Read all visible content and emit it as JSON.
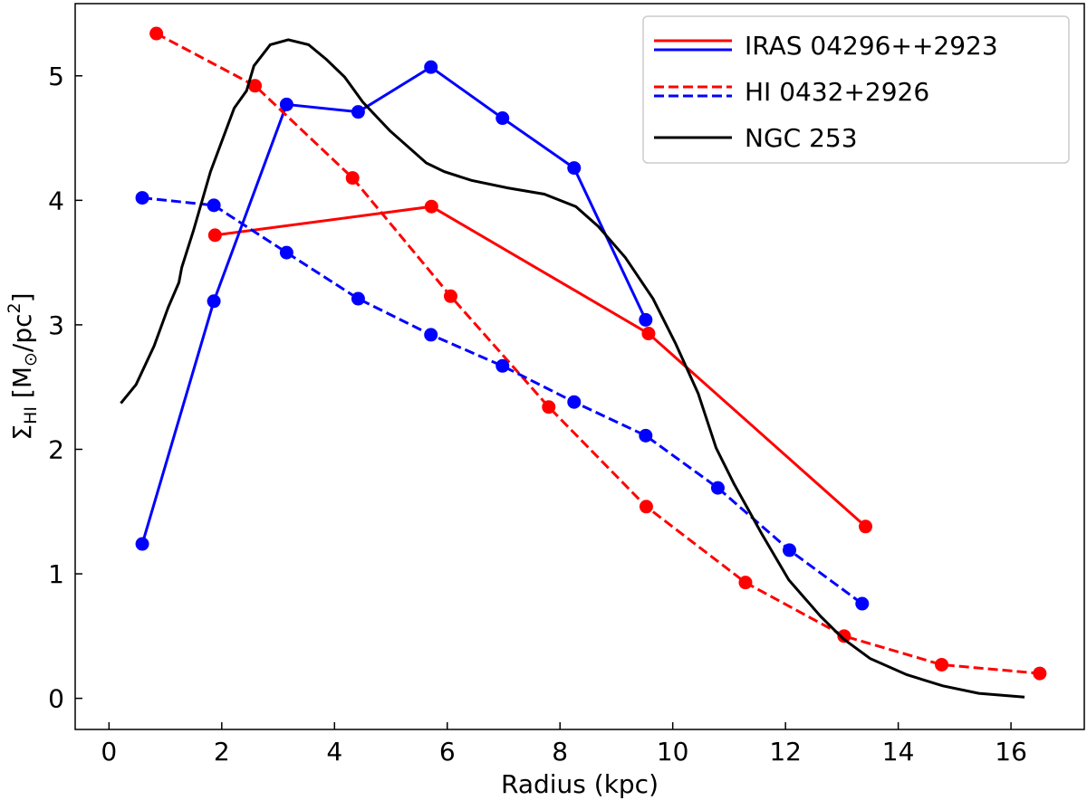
{
  "chart_data": {
    "type": "line",
    "xlabel": "Radius (kpc)",
    "ylabel_parts": [
      {
        "text": "Σ"
      },
      {
        "text": "HI",
        "sub": true
      },
      {
        "text": " [M"
      },
      {
        "text": "⊙",
        "sub": true
      },
      {
        "text": "/pc"
      },
      {
        "text": "2",
        "sup": true
      },
      {
        "text": "]"
      }
    ],
    "xlim": [
      -0.6,
      17.3
    ],
    "ylim": [
      -0.25,
      5.58
    ],
    "xticks": [
      0,
      2,
      4,
      6,
      8,
      10,
      12,
      14,
      16
    ],
    "yticks": [
      0,
      1,
      2,
      3,
      4,
      5
    ],
    "legend": "upper right",
    "series": [
      {
        "name": "IRAS 04296++2923",
        "dashed": false,
        "markers": true,
        "lines": [
          {
            "color": "#ff0000",
            "x": [
              1.88,
              5.72,
              9.57,
              13.42
            ],
            "values": [
              3.72,
              3.95,
              2.93,
              1.38
            ]
          },
          {
            "color": "#0000ff",
            "x": [
              0.59,
              1.86,
              3.15,
              4.42,
              5.71,
              6.98,
              8.25,
              9.52
            ],
            "values": [
              1.24,
              3.19,
              4.77,
              4.71,
              5.07,
              4.66,
              4.26,
              3.04
            ]
          }
        ]
      },
      {
        "name": "HI 0432+2926",
        "dashed": true,
        "markers": true,
        "lines": [
          {
            "color": "#ff0000",
            "x": [
              0.84,
              2.59,
              4.32,
              6.06,
              7.8,
              9.53,
              11.29,
              13.04,
              14.77,
              16.51
            ],
            "values": [
              5.34,
              4.92,
              4.18,
              3.23,
              2.34,
              1.54,
              0.93,
              0.5,
              0.27,
              0.2
            ]
          },
          {
            "color": "#0000ff",
            "x": [
              0.59,
              1.86,
              3.15,
              4.42,
              5.71,
              6.98,
              8.25,
              9.52,
              10.8,
              12.07,
              13.36
            ],
            "values": [
              4.02,
              3.96,
              3.58,
              3.21,
              2.92,
              2.67,
              2.38,
              2.11,
              1.69,
              1.19,
              0.76
            ]
          }
        ]
      },
      {
        "name": "NGC 253",
        "dashed": false,
        "markers": false,
        "lines": [
          {
            "color": "#000000",
            "x": [
              0.21,
              0.48,
              0.8,
              1.05,
              1.24,
              1.29,
              1.5,
              1.8,
              2.22,
              2.44,
              2.57,
              2.86,
              3.18,
              3.54,
              3.86,
              4.18,
              4.5,
              4.98,
              5.63,
              5.95,
              6.43,
              7.07,
              7.72,
              8.28,
              8.68,
              9.16,
              9.65,
              10.05,
              10.45,
              10.77,
              11.09,
              11.58,
              12.06,
              12.62,
              13.02,
              13.5,
              14.15,
              14.79,
              15.43,
              16.24
            ],
            "values": [
              2.37,
              2.52,
              2.83,
              3.14,
              3.34,
              3.46,
              3.76,
              4.23,
              4.74,
              4.88,
              5.08,
              5.25,
              5.29,
              5.25,
              5.13,
              4.99,
              4.79,
              4.56,
              4.3,
              4.23,
              4.16,
              4.1,
              4.05,
              3.95,
              3.79,
              3.54,
              3.21,
              2.85,
              2.45,
              2.01,
              1.72,
              1.32,
              0.95,
              0.66,
              0.48,
              0.32,
              0.19,
              0.1,
              0.04,
              0.01
            ]
          }
        ]
      }
    ]
  }
}
